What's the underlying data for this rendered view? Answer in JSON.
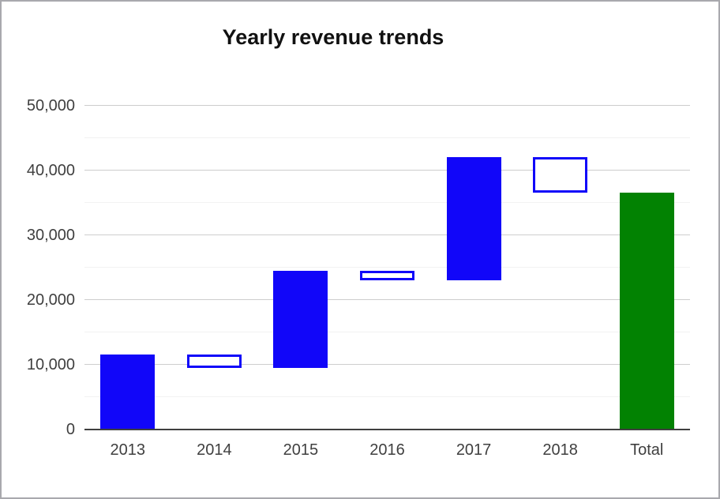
{
  "window": {
    "background": "#ffffff",
    "border_color": "#a9a9ad"
  },
  "chart_data": {
    "type": "waterfall",
    "title": "Yearly revenue trends",
    "categories": [
      "2013",
      "2014",
      "2015",
      "2016",
      "2017",
      "2018",
      "Total"
    ],
    "series": [
      {
        "name": "2013",
        "start": 0,
        "end": 11500,
        "kind": "increase"
      },
      {
        "name": "2014",
        "start": 11500,
        "end": 9500,
        "kind": "decrease"
      },
      {
        "name": "2015",
        "start": 9500,
        "end": 24500,
        "kind": "increase"
      },
      {
        "name": "2016",
        "start": 24500,
        "end": 23000,
        "kind": "decrease"
      },
      {
        "name": "2017",
        "start": 23000,
        "end": 42000,
        "kind": "increase"
      },
      {
        "name": "2018",
        "start": 42000,
        "end": 36500,
        "kind": "decrease"
      },
      {
        "name": "Total",
        "start": 0,
        "end": 36500,
        "kind": "total"
      }
    ],
    "xlabel": "",
    "ylabel": "",
    "ylim": [
      0,
      50000
    ],
    "y_major_step": 10000,
    "y_minor_step": 5000,
    "y_tick_labels": [
      "0",
      "10,000",
      "20,000",
      "30,000",
      "40,000",
      "50,000"
    ],
    "legend": "none",
    "grid": true,
    "colors": {
      "increase_fill": "#1106f9",
      "decrease_fill": "#ffffff",
      "bar_stroke": "#1106f9",
      "total_fill": "#028202",
      "gridline_major": "#cdcdcd",
      "gridline_minor": "#f2f2f2",
      "baseline": "#3f3f3f",
      "axis_text": "#3f3f3f",
      "title_text": "#111111"
    }
  }
}
